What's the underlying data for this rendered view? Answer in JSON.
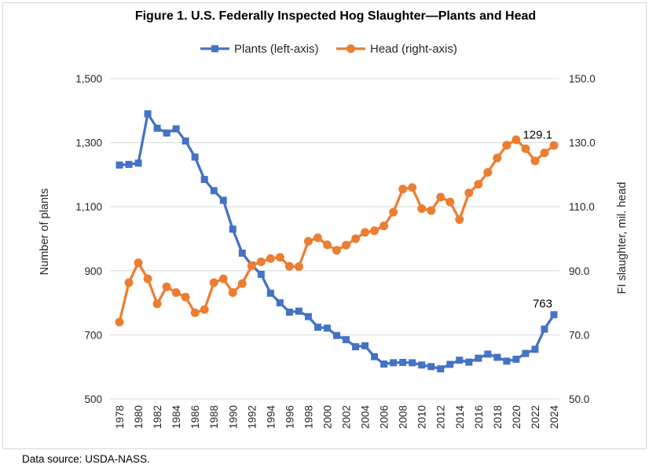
{
  "figure": {
    "title": "Figure 1. U.S. Federally Inspected Hog Slaughter—Plants and Head",
    "source_note": "Data source: USDA-NASS."
  },
  "legend": {
    "plants_label": "Plants (left-axis)",
    "head_label": "Head (right-axis)"
  },
  "chart_data": {
    "type": "line",
    "title": "Figure 1. U.S. Federally Inspected Hog Slaughter—Plants and Head",
    "grid": true,
    "legend_position": "top",
    "x": [
      1978,
      1979,
      1980,
      1981,
      1982,
      1983,
      1984,
      1985,
      1986,
      1987,
      1988,
      1989,
      1990,
      1991,
      1992,
      1993,
      1994,
      1995,
      1996,
      1997,
      1998,
      1999,
      2000,
      2001,
      2002,
      2003,
      2004,
      2005,
      2006,
      2007,
      2008,
      2009,
      2010,
      2011,
      2012,
      2013,
      2014,
      2015,
      2016,
      2017,
      2018,
      2019,
      2020,
      2021,
      2022,
      2023,
      2024
    ],
    "x_tick_labels": [
      "1978",
      "1980",
      "1982",
      "1984",
      "1986",
      "1988",
      "1990",
      "1992",
      "1994",
      "1996",
      "1998",
      "2000",
      "2002",
      "2004",
      "2006",
      "2008",
      "2010",
      "2012",
      "2014",
      "2016",
      "2018",
      "2020",
      "2022",
      "2024"
    ],
    "series": [
      {
        "key": "plants",
        "name": "Plants (left-axis)",
        "axis": "left",
        "color": "#4472C4",
        "marker": "square",
        "values": [
          1230,
          1232,
          1236,
          1390,
          1345,
          1330,
          1343,
          1305,
          1255,
          1185,
          1150,
          1120,
          1030,
          955,
          918,
          889,
          830,
          800,
          771,
          774,
          757,
          724,
          721,
          698,
          685,
          663,
          666,
          632,
          609,
          613,
          614,
          613,
          606,
          601,
          594,
          608,
          621,
          615,
          627,
          640,
          630,
          618,
          624,
          642,
          655,
          718,
          763
        ]
      },
      {
        "key": "head",
        "name": "Head (right-axis)",
        "axis": "right",
        "color": "#ED7D31",
        "marker": "circle",
        "values": [
          74.0,
          86.3,
          92.5,
          87.5,
          79.7,
          85.0,
          83.2,
          81.8,
          76.9,
          77.9,
          86.3,
          87.5,
          83.2,
          86.0,
          91.6,
          92.8,
          93.8,
          94.2,
          91.4,
          91.3,
          99.2,
          100.3,
          98.1,
          96.4,
          98.0,
          100.0,
          102.0,
          102.5,
          104.0,
          108.3,
          115.5,
          116.0,
          109.4,
          108.8,
          113.0,
          111.5,
          106.0,
          114.3,
          117.0,
          120.7,
          125.2,
          129.2,
          130.9,
          128.1,
          124.3,
          126.8,
          129.1
        ]
      }
    ],
    "left_axis": {
      "label": "Number of plants",
      "min": 500,
      "max": 1500,
      "tick_labels": [
        "500",
        "700",
        "900",
        "1,100",
        "1,300",
        "1,500"
      ]
    },
    "right_axis": {
      "label": "FI slaughter, mil. head",
      "min": 50,
      "max": 150,
      "tick_labels": [
        "50.0",
        "70.0",
        "90.0",
        "110.0",
        "130.0",
        "150.0"
      ]
    },
    "annotations": [
      {
        "text": "129.1",
        "series": "head",
        "x": 2024
      },
      {
        "text": "763",
        "series": "plants",
        "x": 2024
      }
    ]
  }
}
